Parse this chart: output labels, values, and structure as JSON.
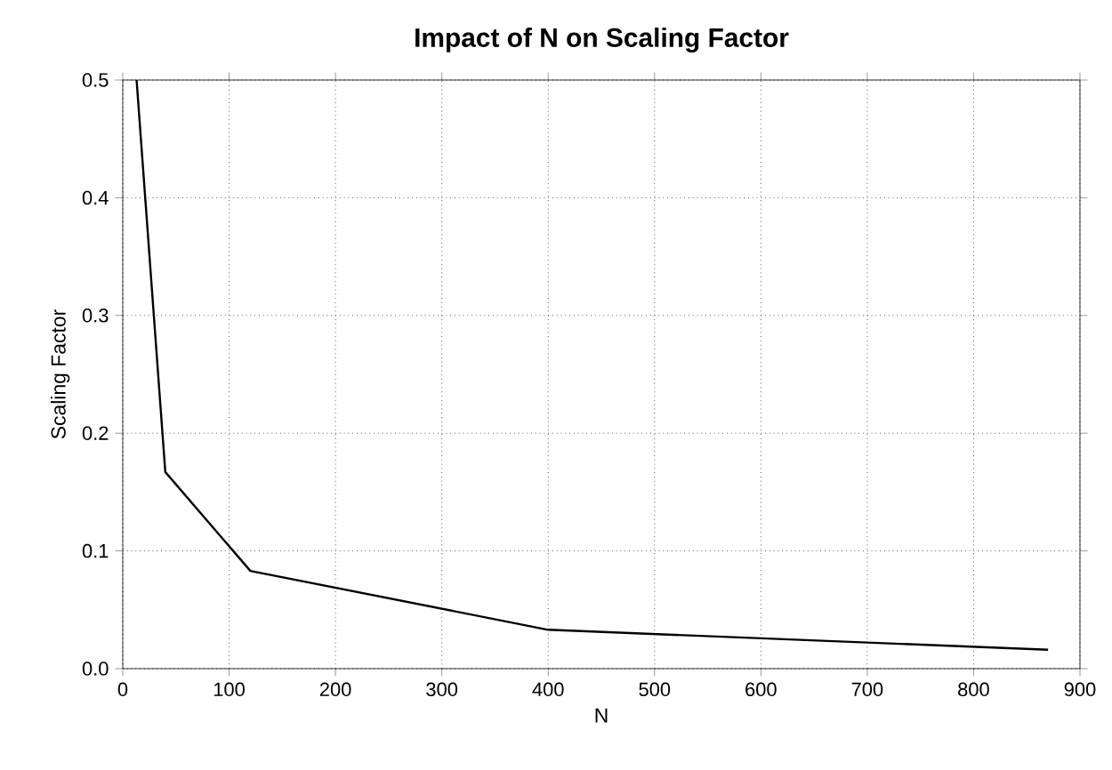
{
  "chart_data": {
    "type": "line",
    "title": "Impact of N on Scaling Factor",
    "xlabel": "N",
    "ylabel": "Scaling Factor",
    "x": [
      13,
      40,
      120,
      400,
      870
    ],
    "series": [
      {
        "color": "#000000",
        "values": [
          0.5,
          0.167,
          0.083,
          0.033,
          0.016
        ]
      }
    ],
    "xlim": [
      0,
      900
    ],
    "xticks": [
      0,
      100,
      200,
      300,
      400,
      500,
      600,
      700,
      800,
      900
    ],
    "ylim": [
      0,
      0.5
    ],
    "yticks": [
      {
        "value": 0,
        "label": "0.0"
      },
      0.1,
      0.2,
      0.3,
      0.4,
      0.5
    ],
    "grid": true,
    "marker": "none",
    "line_style": "solid"
  }
}
